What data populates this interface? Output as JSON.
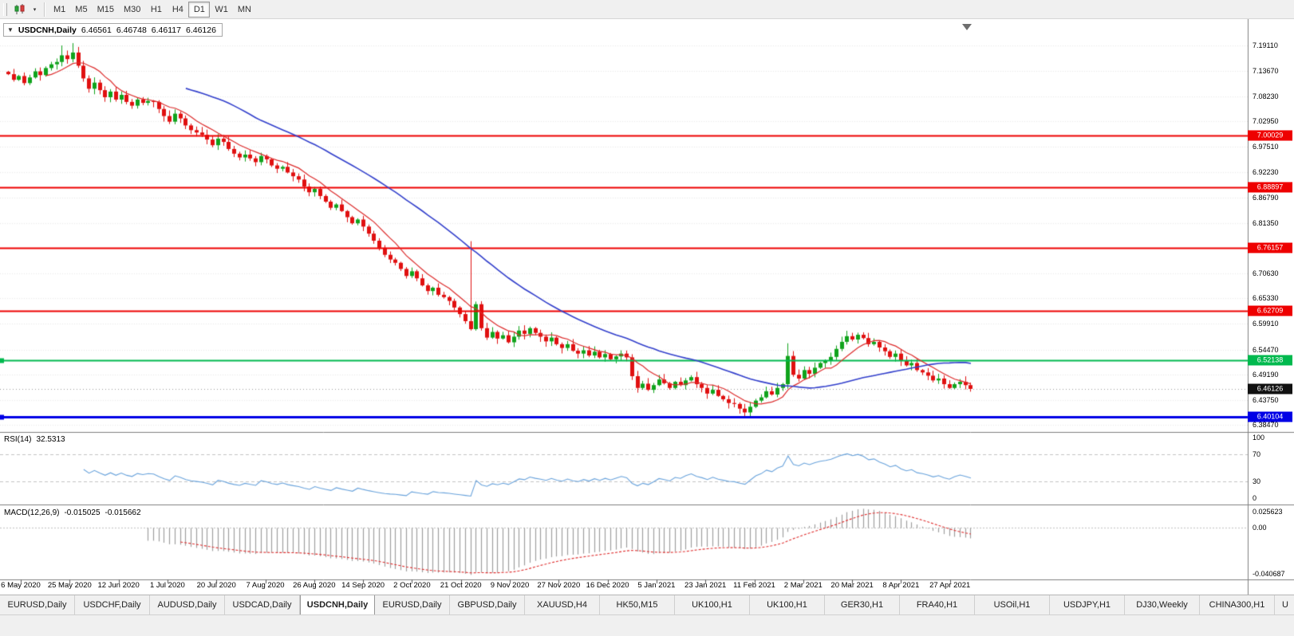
{
  "icons": {
    "one_click_trading": "▼",
    "dropdown": "▾"
  },
  "toolbar": {
    "timeframes": [
      "M1",
      "M5",
      "M15",
      "M30",
      "H1",
      "H4",
      "D1",
      "W1",
      "MN"
    ],
    "active_timeframe": "D1"
  },
  "chart": {
    "title": "USDCNH,Daily",
    "ohlc": {
      "open": "6.46561",
      "high": "6.46748",
      "low": "6.46117",
      "close": "6.46126"
    }
  },
  "chart_data": {
    "type": "candlestick",
    "symbol": "USDCNH",
    "timeframe": "Daily",
    "price_range": {
      "top": 7.247,
      "bottom": 6.3728
    },
    "closes": [
      7.13,
      7.118,
      7.126,
      7.111,
      7.123,
      7.136,
      7.128,
      7.143,
      7.151,
      7.156,
      7.17,
      7.162,
      7.176,
      7.148,
      7.121,
      7.099,
      7.112,
      7.096,
      7.081,
      7.093,
      7.076,
      7.086,
      7.071,
      7.063,
      7.076,
      7.069,
      7.073,
      7.071,
      7.056,
      7.041,
      7.029,
      7.046,
      7.036,
      7.021,
      7.011,
      7.006,
      7.001,
      6.991,
      6.979,
      6.993,
      6.986,
      6.971,
      6.961,
      6.953,
      6.959,
      6.951,
      6.943,
      6.956,
      6.949,
      6.936,
      6.929,
      6.933,
      6.921,
      6.913,
      6.906,
      6.891,
      6.879,
      6.886,
      6.871,
      6.859,
      6.846,
      6.853,
      6.839,
      6.826,
      6.813,
      6.821,
      6.806,
      6.791,
      6.776,
      6.761,
      6.746,
      6.736,
      6.729,
      6.716,
      6.701,
      6.711,
      6.696,
      6.681,
      6.669,
      6.676,
      6.661,
      6.656,
      6.648,
      6.634,
      6.62,
      6.605,
      6.588,
      6.641,
      6.59,
      6.57,
      6.582,
      6.568,
      6.575,
      6.56,
      6.572,
      6.585,
      6.578,
      6.59,
      6.58,
      6.572,
      6.562,
      6.57,
      6.556,
      6.548,
      6.556,
      6.542,
      6.536,
      6.543,
      6.532,
      6.54,
      6.528,
      6.535,
      6.524,
      6.53,
      6.536,
      6.528,
      6.488,
      6.463,
      6.472,
      6.459,
      6.469,
      6.481,
      6.473,
      6.463,
      6.476,
      6.469,
      6.479,
      6.486,
      6.471,
      6.463,
      6.451,
      6.459,
      6.446,
      6.439,
      6.431,
      6.429,
      6.419,
      6.411,
      6.423,
      6.436,
      6.443,
      6.456,
      6.449,
      6.463,
      6.471,
      6.531,
      6.491,
      6.483,
      6.501,
      6.493,
      6.506,
      6.516,
      6.521,
      6.529,
      6.546,
      6.561,
      6.573,
      6.566,
      6.576,
      6.569,
      6.556,
      6.561,
      6.549,
      6.541,
      6.529,
      6.536,
      6.521,
      6.511,
      6.516,
      6.501,
      6.496,
      6.489,
      6.479,
      6.483,
      6.471,
      6.463,
      6.471,
      6.476,
      6.469,
      6.461
    ],
    "wick_overrides": {
      "10": {
        "high": 7.191
      },
      "12": {
        "high": 7.196
      },
      "86": {
        "high": 6.775,
        "low": 6.585
      },
      "116": {
        "low": 6.48
      },
      "137": {
        "low": 6.402
      },
      "145": {
        "high": 6.558
      }
    },
    "price_axis_labels": [
      "7.19110",
      "7.13670",
      "7.08230",
      "7.02950",
      "6.97510",
      "6.92230",
      "6.86790",
      "6.81350",
      "6.70630",
      "6.65330",
      "6.59910",
      "6.54470",
      "6.49190",
      "6.43750",
      "6.38470"
    ],
    "x_labels": [
      "6 May 2020",
      "25 May 2020",
      "12 Jun 2020",
      "1 Jul 2020",
      "20 Jul 2020",
      "7 Aug 2020",
      "26 Aug 2020",
      "14 Sep 2020",
      "2 Oct 2020",
      "21 Oct 2020",
      "9 Nov 2020",
      "27 Nov 2020",
      "16 Dec 2020",
      "5 Jan 2021",
      "23 Jan 2021",
      "11 Feb 2021",
      "2 Mar 2021",
      "20 Mar 2021",
      "8 Apr 2021",
      "27 Apr 2021"
    ],
    "hlines": [
      {
        "label": "7.00029",
        "value": 7.00029,
        "color_key": "hline_red",
        "lw": 2
      },
      {
        "label": "6.88897",
        "value": 6.88897,
        "color_key": "hline_red",
        "lw": 2
      },
      {
        "label": "6.76157",
        "value": 6.76157,
        "color_key": "hline_red",
        "lw": 2
      },
      {
        "label": "6.62709",
        "value": 6.62709,
        "color_key": "hline_red",
        "lw": 2
      },
      {
        "label": "6.52138",
        "value": 6.52138,
        "color_key": "hline_green",
        "lw": 2,
        "handle": true
      },
      {
        "label": "6.40104",
        "value": 6.40104,
        "color_key": "hline_blue",
        "lw": 3,
        "handle": true
      }
    ],
    "current_price": {
      "label": "6.46126",
      "value": 6.46126
    },
    "ma_lines": [
      {
        "period": 8,
        "color_key": "ma_fast"
      },
      {
        "period": 34,
        "color_key": "ma_slow"
      }
    ],
    "indicators": {
      "rsi": {
        "label": "RSI(14)",
        "value": "32.5313",
        "period": 14,
        "levels": [
          "100",
          "70",
          "30",
          "0"
        ]
      },
      "macd": {
        "label": "MACD(12,26,9)",
        "value_main": "-0.015025",
        "value_signal": "-0.015662",
        "fast": 12,
        "slow": 26,
        "signal": 9,
        "axis_labels": [
          "0.025623",
          "0.00",
          "-0.040687"
        ]
      }
    },
    "colors": {
      "background": "#ffffff",
      "up": "#10a31c",
      "down": "#e01010",
      "ma_fast": "#dd2c2c",
      "ma_slow": "#3340cc",
      "rsi_line": "#69a3dc",
      "macd_hist": "#9e9e9e",
      "macd_signal": "#e03030",
      "grid": "#e8e8e8",
      "level_dash": "#c4c4c4",
      "hline_red": "#ee0000",
      "hline_green": "#00b94e",
      "hline_blue": "#0000e6",
      "current_tag": "#111111"
    }
  },
  "tabbar": {
    "active_index": 4,
    "tabs": [
      "EURUSD,Daily",
      "USDCHF,Daily",
      "AUDUSD,Daily",
      "USDCAD,Daily",
      "USDCNH,Daily",
      "EURUSD,Daily",
      "GBPUSD,Daily",
      "XAUUSD,H4",
      "HK50,M15",
      "UK100,H1",
      "UK100,H1",
      "GER30,H1",
      "FRA40,H1",
      "USOil,H1",
      "USDJPY,H1",
      "DJ30,Weekly",
      "CHINA300,H1",
      "U"
    ]
  }
}
